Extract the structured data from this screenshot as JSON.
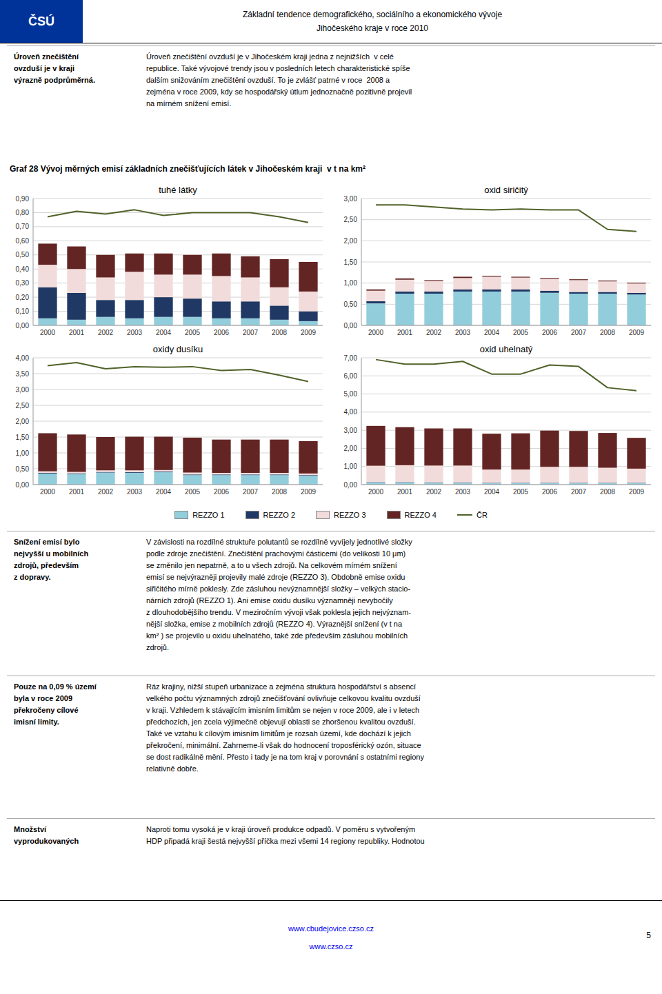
{
  "page": {
    "logo": "ČSÚ",
    "header": [
      "Základní tendence demografického, sociálního a ekonomického vývoje",
      "Jihočeského kraje v roce 2010"
    ],
    "figure_title": "Graf 28 Vývoj měrných emisí základních znečišťujících látek v Jihočeském kraji  v t na km²",
    "text_blocks": [
      {
        "lead": "Úroveň znečištění\novzduší je v kraji\nvýrazně podprůměrná.",
        "body": "Úroveň znečištění ovzduší je v Jihočeském kraji jedna z nejnižších  v celé\nrepublice. Také vývojové trendy jsou v posledních letech charakteristické spíše\ndalším snižováním znečištění ovzduší. To je zvlášť patrné v roce  2008 a\nzejména v roce 2009, kdy se hospodářský útlum jednoznačně pozitivně projevil\nna mírném snížení emisí."
      },
      {
        "lead": "Snížení emisí bylo\nnejvyšší u mobilních\nzdrojů, především\nz dopravy.",
        "body": "V závislosti na rozdílné struktuře polutantů se rozdílně vyvíjely jednotlivé složky\npodle zdroje znečištění. Znečištění prachovými částicemi (do velikosti 10 μm)\nse změnilo jen nepatrně, a to u všech zdrojů. Na celkovém mírném snížení\nemisí se nejvýrazněji projevily malé zdroje (REZZO 3). Obdobně emise oxidu\nsiřičitého mírně poklesly. Zde zásluhou nevýznamnější složky – velkých stacio-\nnárních zdrojů (REZZO 1). Ani emise oxidu dusíku významněji nevybočily\nz dlouhodobějšího trendu. V meziročním vývoji však poklesla jejich nejvýznam-\nnější složka, emise z mobilních zdrojů (REZZO 4). Výraznější snížení (v t na\nkm² ) se projevilo u oxidu uhelnatého, také zde především zásluhou mobilních\nzdrojů."
      },
      {
        "lead": "Pouze na 0,09 % území\nbyla v roce 2009\npřekročeny cílové\nimisní limity.",
        "body": "Ráz krajiny, nižší stupeň urbanizace a zejména struktura hospodářství s absencí\nvelkého počtu významných zdrojů znečišťování ovlivňuje celkovou kvalitu ovzduší\nv kraji. Vzhledem k stávajícím imisním limitům se nejen v roce 2009, ale i v letech\npředchozích, jen zcela výjimečně objevují oblasti se zhoršenou kvalitou ovzduší.\nTaké ve vztahu k cílovým imisním limitům je rozsah území, kde dochází k jejich\npřekročení, minimální. Zahrneme-li však do hodnocení troposférický ozón, situace\nse dost radikálně mění. Přesto i tady je na tom kraj v porovnání s ostatními regiony\nrelativně dobře."
      },
      {
        "lead": "Množství\nvyprodukovaných",
        "body": "Naproti tomu vysoká je v kraji úroveň produkce odpadů. V poměru s vytvořeným\nHDP připadá kraji šestá nejvyšší příčka mezi všemi 14 regiony republiky. Hodnotou"
      }
    ],
    "footer": [
      "www.cbudejovice.czso.cz",
      "www.czso.cz"
    ],
    "page_number": "5"
  },
  "chart_data": [
    {
      "type": "bar",
      "stacked": true,
      "grid": true,
      "legend": "bottom",
      "title": "tuhé látky",
      "categories": [
        "2000",
        "2001",
        "2002",
        "2003",
        "2004",
        "2005",
        "2006",
        "2007",
        "2008",
        "2009"
      ],
      "series": [
        {
          "name": "REZZO 1",
          "color": "#92CDDC",
          "values": [
            0.05,
            0.04,
            0.06,
            0.05,
            0.06,
            0.06,
            0.05,
            0.05,
            0.04,
            0.03
          ]
        },
        {
          "name": "REZZO 2",
          "color": "#1F3864",
          "values": [
            0.22,
            0.19,
            0.12,
            0.13,
            0.14,
            0.13,
            0.12,
            0.12,
            0.1,
            0.07
          ]
        },
        {
          "name": "REZZO 3",
          "color": "#F2DCDB",
          "values": [
            0.16,
            0.17,
            0.16,
            0.2,
            0.16,
            0.17,
            0.18,
            0.17,
            0.13,
            0.14
          ]
        },
        {
          "name": "REZZO 4",
          "color": "#632523",
          "values": [
            0.15,
            0.16,
            0.16,
            0.13,
            0.15,
            0.14,
            0.16,
            0.15,
            0.2,
            0.21
          ]
        },
        {
          "name": "ČR",
          "type": "line",
          "color": "#4F6228",
          "values": [
            0.77,
            0.81,
            0.79,
            0.82,
            0.78,
            0.8,
            0.8,
            0.8,
            0.77,
            0.73
          ]
        }
      ],
      "ylim": [
        0.0,
        0.9
      ],
      "yticks": [
        {
          "value": 0.0,
          "label": "0,00"
        },
        {
          "value": 0.1,
          "label": "0,10"
        },
        {
          "value": 0.2,
          "label": "0,20"
        },
        {
          "value": 0.3,
          "label": "0,30"
        },
        {
          "value": 0.4,
          "label": "0,40"
        },
        {
          "value": 0.5,
          "label": "0,50"
        },
        {
          "value": 0.6,
          "label": "0,60"
        },
        {
          "value": 0.7,
          "label": "0,70"
        },
        {
          "value": 0.8,
          "label": "0,80"
        },
        {
          "value": 0.9,
          "label": "0,90"
        }
      ]
    },
    {
      "type": "bar",
      "stacked": true,
      "grid": true,
      "title": "oxid siričitý",
      "categories": [
        "2000",
        "2001",
        "2002",
        "2003",
        "2004",
        "2005",
        "2006",
        "2007",
        "2008",
        "2009"
      ],
      "series": [
        {
          "name": "REZZO 1",
          "color": "#92CDDC",
          "values": [
            0.52,
            0.75,
            0.75,
            0.8,
            0.8,
            0.8,
            0.77,
            0.75,
            0.75,
            0.73
          ]
        },
        {
          "name": "REZZO 2",
          "color": "#1F3864",
          "values": [
            0.05,
            0.05,
            0.05,
            0.05,
            0.05,
            0.05,
            0.05,
            0.04,
            0.04,
            0.04
          ]
        },
        {
          "name": "REZZO 3",
          "color": "#F2DCDB",
          "values": [
            0.25,
            0.28,
            0.25,
            0.27,
            0.3,
            0.28,
            0.28,
            0.28,
            0.25,
            0.22
          ]
        },
        {
          "name": "REZZO 4",
          "color": "#632523",
          "values": [
            0.03,
            0.03,
            0.02,
            0.03,
            0.02,
            0.02,
            0.02,
            0.02,
            0.02,
            0.02
          ]
        },
        {
          "name": "ČR",
          "type": "line",
          "color": "#4F6228",
          "values": [
            2.85,
            2.85,
            2.8,
            2.75,
            2.73,
            2.75,
            2.73,
            2.73,
            2.27,
            2.22
          ]
        }
      ],
      "ylim": [
        0.0,
        3.0
      ],
      "yticks": [
        {
          "value": 0.0,
          "label": "0,00"
        },
        {
          "value": 0.5,
          "label": "0,50"
        },
        {
          "value": 1.0,
          "label": "1,00"
        },
        {
          "value": 1.5,
          "label": "1,50"
        },
        {
          "value": 2.0,
          "label": "2,00"
        },
        {
          "value": 2.5,
          "label": "2,50"
        },
        {
          "value": 3.0,
          "label": "3,00"
        }
      ]
    },
    {
      "type": "bar",
      "stacked": true,
      "grid": true,
      "title": "oxidy dusíku",
      "categories": [
        "2000",
        "2001",
        "2002",
        "2003",
        "2004",
        "2005",
        "2006",
        "2007",
        "2008",
        "2009"
      ],
      "series": [
        {
          "name": "REZZO 1",
          "color": "#92CDDC",
          "values": [
            0.35,
            0.33,
            0.38,
            0.37,
            0.39,
            0.3,
            0.3,
            0.3,
            0.3,
            0.28
          ]
        },
        {
          "name": "REZZO 2",
          "color": "#1F3864",
          "values": [
            0.02,
            0.02,
            0.02,
            0.02,
            0.02,
            0.02,
            0.02,
            0.02,
            0.02,
            0.02
          ]
        },
        {
          "name": "REZZO 3",
          "color": "#F2DCDB",
          "values": [
            0.05,
            0.05,
            0.05,
            0.06,
            0.05,
            0.06,
            0.05,
            0.05,
            0.05,
            0.05
          ]
        },
        {
          "name": "REZZO 4",
          "color": "#632523",
          "values": [
            1.2,
            1.18,
            1.05,
            1.06,
            1.05,
            1.1,
            1.05,
            1.05,
            1.05,
            1.02
          ]
        },
        {
          "name": "ČR",
          "type": "line",
          "color": "#4F6228",
          "values": [
            3.75,
            3.85,
            3.65,
            3.72,
            3.7,
            3.72,
            3.6,
            3.63,
            3.45,
            3.25
          ]
        }
      ],
      "ylim": [
        0.0,
        4.0
      ],
      "yticks": [
        {
          "value": 0.0,
          "label": "0,00"
        },
        {
          "value": 0.5,
          "label": "0,50"
        },
        {
          "value": 1.0,
          "label": "1,00"
        },
        {
          "value": 1.5,
          "label": "1,50"
        },
        {
          "value": 2.0,
          "label": "2,00"
        },
        {
          "value": 2.5,
          "label": "2,50"
        },
        {
          "value": 3.0,
          "label": "3,00"
        },
        {
          "value": 3.5,
          "label": "3,50"
        },
        {
          "value": 4.0,
          "label": "4,00"
        }
      ]
    },
    {
      "type": "bar",
      "stacked": true,
      "grid": true,
      "title": "oxid uhelnatý",
      "categories": [
        "2000",
        "2001",
        "2002",
        "2003",
        "2004",
        "2005",
        "2006",
        "2007",
        "2008",
        "2009"
      ],
      "series": [
        {
          "name": "REZZO 1",
          "color": "#92CDDC",
          "values": [
            0.12,
            0.12,
            0.1,
            0.1,
            0.08,
            0.08,
            0.08,
            0.08,
            0.08,
            0.08
          ]
        },
        {
          "name": "REZZO 2",
          "color": "#1F3864",
          "values": [
            0.02,
            0.02,
            0.02,
            0.02,
            0.02,
            0.02,
            0.02,
            0.02,
            0.02,
            0.02
          ]
        },
        {
          "name": "REZZO 3",
          "color": "#F2DCDB",
          "values": [
            0.9,
            0.93,
            0.93,
            0.93,
            0.73,
            0.73,
            0.88,
            0.88,
            0.83,
            0.78
          ]
        },
        {
          "name": "REZZO 4",
          "color": "#632523",
          "values": [
            2.2,
            2.1,
            2.05,
            2.05,
            1.98,
            2.0,
            2.0,
            1.98,
            1.92,
            1.7
          ]
        },
        {
          "name": "ČR",
          "type": "line",
          "color": "#4F6228",
          "values": [
            6.9,
            6.65,
            6.65,
            6.8,
            6.1,
            6.1,
            6.6,
            6.52,
            5.35,
            5.18
          ]
        }
      ],
      "ylim": [
        0.0,
        7.0
      ],
      "yticks": [
        {
          "value": 0.0,
          "label": "0,00"
        },
        {
          "value": 1.0,
          "label": "1,00"
        },
        {
          "value": 2.0,
          "label": "2,00"
        },
        {
          "value": 3.0,
          "label": "3,00"
        },
        {
          "value": 4.0,
          "label": "4,00"
        },
        {
          "value": 5.0,
          "label": "5,00"
        },
        {
          "value": 6.0,
          "label": "6,00"
        },
        {
          "value": 7.0,
          "label": "7,00"
        }
      ]
    }
  ]
}
